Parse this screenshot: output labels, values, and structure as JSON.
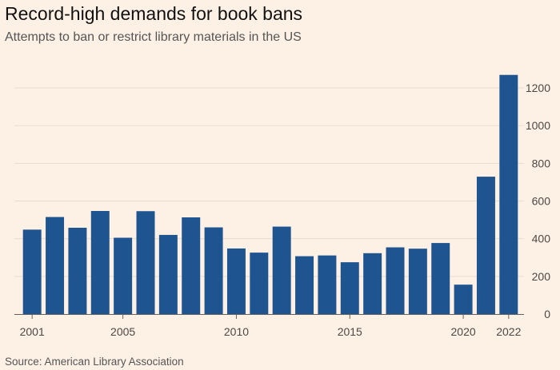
{
  "header": {
    "title": "Record-high demands for book bans",
    "subtitle": "Attempts to ban or restrict library materials in the US"
  },
  "footer": {
    "source": "Source: American Library Association"
  },
  "colors": {
    "bar": "#1e5490",
    "grid": "#e8dccf",
    "baseline": "#66605c",
    "background": "#fdf1e6"
  },
  "chart_data": {
    "type": "bar",
    "title": "Record-high demands for book bans",
    "subtitle": "Attempts to ban or restrict library materials in the US",
    "xlabel": "",
    "ylabel": "",
    "categories": [
      "2001",
      "2002",
      "2003",
      "2004",
      "2005",
      "2006",
      "2007",
      "2008",
      "2009",
      "2010",
      "2011",
      "2012",
      "2013",
      "2014",
      "2015",
      "2016",
      "2017",
      "2018",
      "2019",
      "2020",
      "2021",
      "2022"
    ],
    "values": [
      448,
      515,
      458,
      547,
      405,
      546,
      420,
      513,
      460,
      348,
      326,
      464,
      307,
      311,
      275,
      323,
      354,
      347,
      377,
      156,
      729,
      1269
    ],
    "x_tick_labels": [
      "2001",
      "2005",
      "2010",
      "2015",
      "2020",
      "2022"
    ],
    "y_ticks": [
      0,
      200,
      400,
      600,
      800,
      1000,
      1200
    ],
    "y_tick_labels": [
      "0",
      "200",
      "400",
      "600",
      "800",
      "1000",
      "1200"
    ],
    "ylim": [
      0,
      1300
    ],
    "grid": true,
    "y_axis_side": "right"
  }
}
